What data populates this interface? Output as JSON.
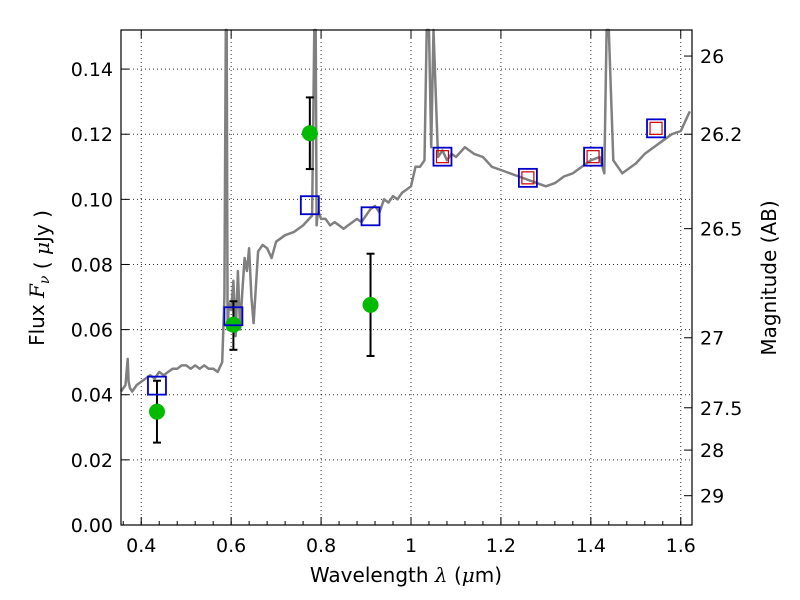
{
  "chart_data": {
    "type": "scatter",
    "xlabel": "Wavelength  λ (μm)",
    "ylabel": "Flux  F_ν  ( μJy )",
    "y2label": "Magnitude (AB)",
    "xlim": [
      0.355,
      1.625
    ],
    "ylim": [
      0.0,
      0.152
    ],
    "x_ticks": [
      0.4,
      0.6,
      0.8,
      1.0,
      1.2,
      1.4,
      1.6
    ],
    "x_tick_labels": [
      "0.4",
      "0.6",
      "0.8",
      "1",
      "1.2",
      "1.4",
      "1.6"
    ],
    "y_ticks": [
      0.0,
      0.02,
      0.04,
      0.06,
      0.08,
      0.1,
      0.12,
      0.14
    ],
    "y_tick_labels": [
      "0.00",
      "0.02",
      "0.04",
      "0.06",
      "0.08",
      "0.10",
      "0.12",
      "0.14"
    ],
    "y2_ticks": [
      {
        "label": "26",
        "flux": 0.144
      },
      {
        "label": "26.2",
        "flux": 0.12
      },
      {
        "label": "26.5",
        "flux": 0.091
      },
      {
        "label": "27",
        "flux": 0.0575
      },
      {
        "label": "27.5",
        "flux": 0.036
      },
      {
        "label": "28",
        "flux": 0.023
      },
      {
        "label": "29",
        "flux": 0.009
      }
    ],
    "grid": true,
    "colors": {
      "model": "#808080",
      "observed": "#00bb00",
      "model_photometry": "#0000cc",
      "model_photometry_inner": "#cc0000",
      "error_bar": "#000000"
    },
    "series": [
      {
        "kind": "line",
        "x": [
          0.355,
          0.365,
          0.37,
          0.372,
          0.375,
          0.38,
          0.39,
          0.4,
          0.41,
          0.42,
          0.43,
          0.44,
          0.45,
          0.46,
          0.47,
          0.48,
          0.49,
          0.5,
          0.51,
          0.52,
          0.53,
          0.54,
          0.55,
          0.56,
          0.57,
          0.58,
          0.585,
          0.588,
          0.59,
          0.592,
          0.595,
          0.6,
          0.605,
          0.61,
          0.615,
          0.62,
          0.625,
          0.63,
          0.635,
          0.64,
          0.645,
          0.65,
          0.66,
          0.67,
          0.68,
          0.69,
          0.7,
          0.72,
          0.74,
          0.76,
          0.78,
          0.785,
          0.788,
          0.79,
          0.792,
          0.795,
          0.8,
          0.81,
          0.82,
          0.83,
          0.84,
          0.85,
          0.86,
          0.87,
          0.88,
          0.89,
          0.9,
          0.91,
          0.92,
          0.93,
          0.94,
          0.95,
          0.96,
          0.97,
          0.98,
          0.99,
          1.0,
          1.01,
          1.02,
          1.03,
          1.035,
          1.04,
          1.045,
          1.05,
          1.06,
          1.07,
          1.08,
          1.09,
          1.1,
          1.12,
          1.14,
          1.16,
          1.18,
          1.2,
          1.22,
          1.24,
          1.26,
          1.28,
          1.3,
          1.32,
          1.34,
          1.36,
          1.38,
          1.4,
          1.42,
          1.43,
          1.435,
          1.44,
          1.45,
          1.47,
          1.5,
          1.52,
          1.54,
          1.56,
          1.58,
          1.6,
          1.62
        ],
        "y": [
          0.041,
          0.043,
          0.051,
          0.044,
          0.042,
          0.041,
          0.043,
          0.044,
          0.045,
          0.046,
          0.045,
          0.047,
          0.046,
          0.047,
          0.048,
          0.048,
          0.049,
          0.049,
          0.048,
          0.049,
          0.048,
          0.049,
          0.048,
          0.048,
          0.047,
          0.05,
          0.07,
          0.152,
          0.152,
          0.06,
          0.068,
          0.066,
          0.075,
          0.058,
          0.078,
          0.06,
          0.072,
          0.082,
          0.078,
          0.085,
          0.07,
          0.062,
          0.084,
          0.086,
          0.085,
          0.082,
          0.087,
          0.089,
          0.09,
          0.092,
          0.095,
          0.152,
          0.152,
          0.092,
          0.095,
          0.096,
          0.094,
          0.094,
          0.092,
          0.093,
          0.092,
          0.091,
          0.092,
          0.093,
          0.094,
          0.093,
          0.095,
          0.097,
          0.098,
          0.096,
          0.1,
          0.099,
          0.101,
          0.1,
          0.102,
          0.103,
          0.104,
          0.11,
          0.11,
          0.112,
          0.152,
          0.152,
          0.116,
          0.152,
          0.113,
          0.115,
          0.112,
          0.114,
          0.113,
          0.116,
          0.114,
          0.113,
          0.11,
          0.109,
          0.108,
          0.107,
          0.106,
          0.105,
          0.104,
          0.105,
          0.107,
          0.108,
          0.11,
          0.112,
          0.113,
          0.108,
          0.152,
          0.152,
          0.112,
          0.108,
          0.111,
          0.114,
          0.116,
          0.118,
          0.12,
          0.121,
          0.127
        ]
      },
      {
        "kind": "scatter_error",
        "x": [
          0.435,
          0.605,
          0.775,
          0.91
        ],
        "y": [
          0.0348,
          0.0615,
          0.1203,
          0.0676
        ],
        "yerr_low": [
          0.0253,
          0.0538,
          0.1093,
          0.0519
        ],
        "yerr_high": [
          0.0443,
          0.0687,
          0.1313,
          0.0833
        ]
      },
      {
        "kind": "square_markers",
        "x": [
          0.435,
          0.605,
          0.775,
          0.91,
          1.07,
          1.26,
          1.405,
          1.545
        ],
        "y": [
          0.0428,
          0.0641,
          0.0982,
          0.0948,
          0.1131,
          0.1066,
          0.1131,
          0.1218
        ],
        "inner_marker": [
          false,
          false,
          false,
          false,
          true,
          true,
          true,
          true
        ]
      }
    ]
  }
}
